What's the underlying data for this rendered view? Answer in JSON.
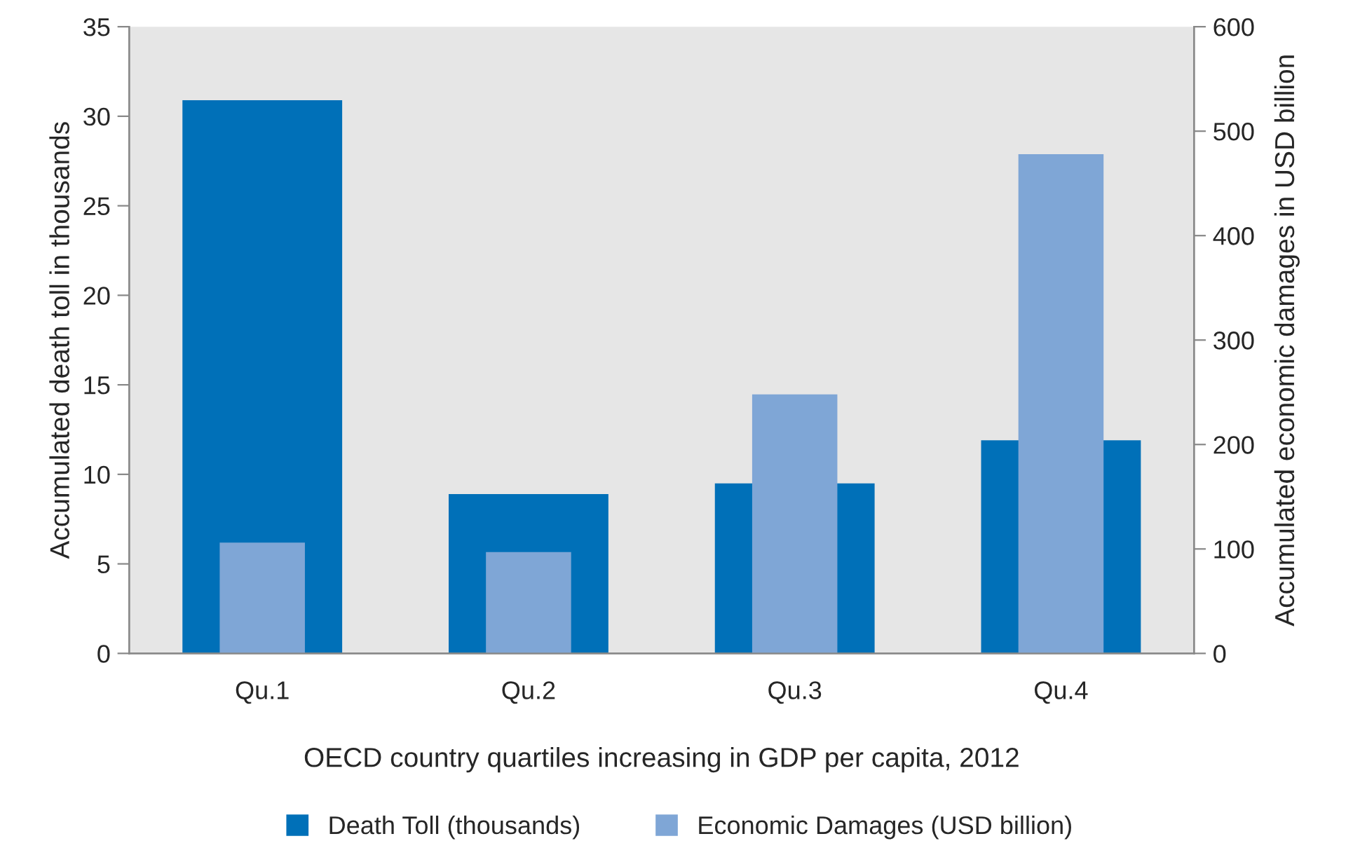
{
  "chart_data": {
    "type": "bar",
    "xlabel": "OECD country quartiles increasing in GDP per capita, 2012",
    "ylabel": "Accumulated death toll in thousands",
    "y2label": "Accumulated economic damages in USD billion",
    "categories": [
      "Qu.1",
      "Qu.2",
      "Qu.3",
      "Qu.4"
    ],
    "series": [
      {
        "name": "Death Toll (thousands)",
        "color": "#0070b8",
        "values": [
          30.9,
          8.9,
          9.5,
          11.9
        ]
      },
      {
        "name": "Economic Damages (USD billion)",
        "color": "#7fa6d6",
        "values": [
          106,
          97,
          248,
          478
        ],
        "axis": "y2"
      }
    ],
    "ylim": [
      0,
      35
    ],
    "yticks": [
      0,
      5,
      10,
      15,
      20,
      25,
      30,
      35
    ],
    "y2lim": [
      0,
      600
    ],
    "y2ticks": [
      0,
      100,
      200,
      300,
      400,
      500,
      600
    ],
    "grid": false,
    "legend": "bottom"
  }
}
